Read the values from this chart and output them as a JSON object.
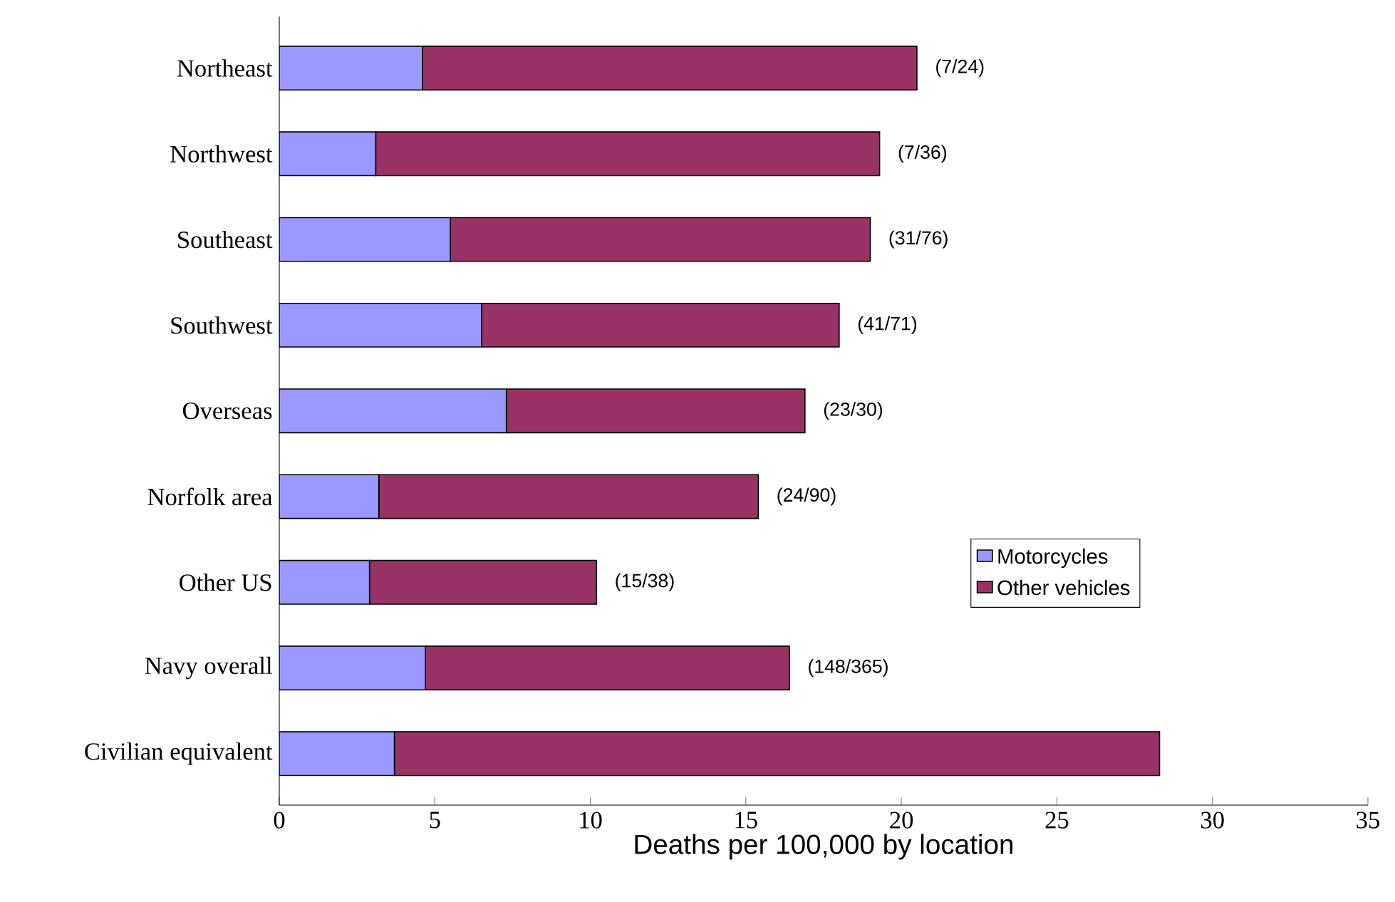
{
  "chart_data": {
    "type": "bar",
    "orientation": "horizontal",
    "stacked": true,
    "xlabel": "Deaths per 100,000 by location",
    "categories": [
      "Northeast",
      "Northwest",
      "Southeast",
      "Southwest",
      "Overseas",
      "Norfolk area",
      "Other US",
      "Navy overall",
      "Civilian equivalent"
    ],
    "series": [
      {
        "name": "Motorcycles",
        "color": "#9999ff",
        "values": [
          4.6,
          3.1,
          5.5,
          6.5,
          7.3,
          3.2,
          2.9,
          4.7,
          3.7
        ]
      },
      {
        "name": "Other vehicles",
        "color": "#993366",
        "values": [
          15.9,
          16.2,
          13.5,
          11.5,
          9.6,
          12.2,
          7.3,
          11.7,
          24.6
        ]
      }
    ],
    "xlim": [
      0,
      35
    ],
    "xticks": [
      0,
      5,
      10,
      15,
      20,
      25,
      30,
      35
    ],
    "annotations": [
      {
        "text": "(7/24)",
        "x": 20.5,
        "y": "Northeast"
      },
      {
        "text": "(7/36)",
        "x": 19.3,
        "y": "Northwest"
      },
      {
        "text": "(31/76)",
        "x": 19.0,
        "y": "Southeast"
      },
      {
        "text": "(41/71)",
        "x": 18.0,
        "y": "Southwest"
      },
      {
        "text": "(23/30)",
        "x": 16.9,
        "y": "Overseas"
      },
      {
        "text": "(24/90)",
        "x": 15.4,
        "y": "Norfolk area"
      },
      {
        "text": "(15/38)",
        "x": 10.2,
        "y": "Other US"
      },
      {
        "text": "(148/365)",
        "x": 16.4,
        "y": "Navy overall"
      }
    ],
    "legend": "right",
    "grid": false
  }
}
